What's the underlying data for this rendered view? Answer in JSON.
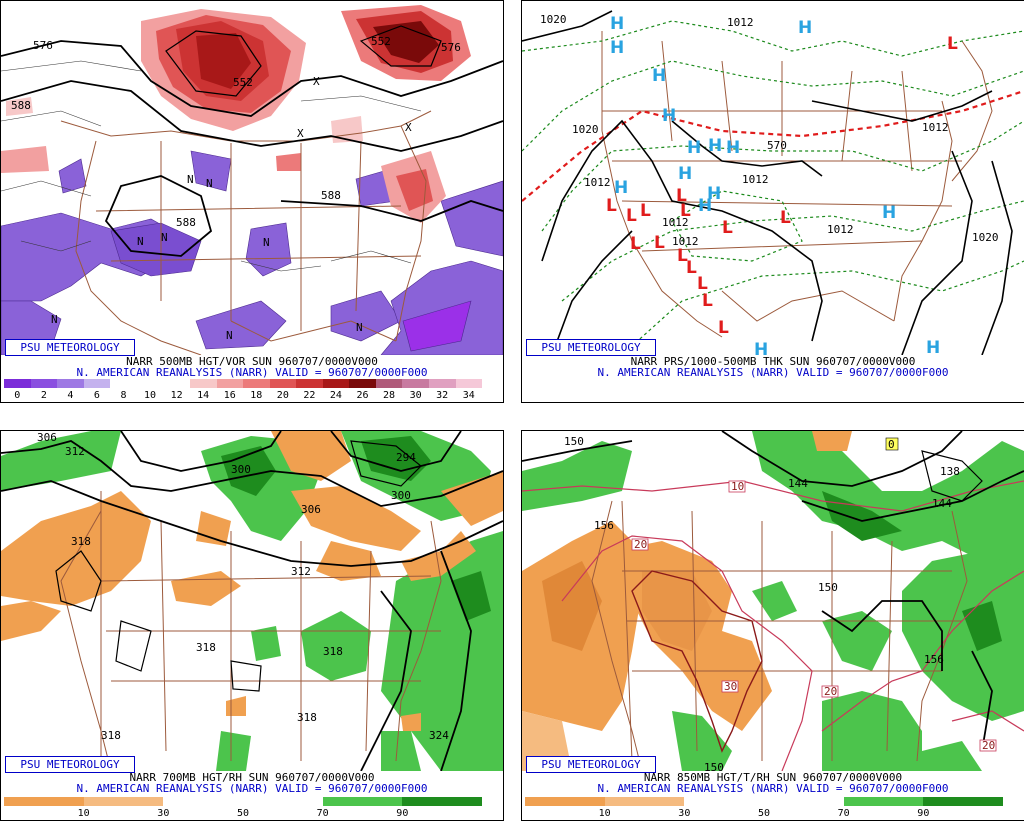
{
  "panels": [
    {
      "id": "p1",
      "title_line1": "NARR 500MB HGT/VOR SUN 960707/0000V000",
      "title_line2": "N. AMERICAN REANALYSIS (NARR) VALID = 960707/0000F000",
      "logo": "PSU METEOROLOGY",
      "scale_labels": [
        "0",
        "2",
        "4",
        "6",
        "8",
        "10",
        "12",
        "14",
        "16",
        "18",
        "20",
        "22",
        "24",
        "26",
        "28",
        "30",
        "32",
        "34"
      ],
      "scale_colors": [
        "#7b2cd9",
        "#8a4fe0",
        "#9e79e4",
        "#c4b2ee",
        "#ffffff",
        "#ffffff",
        "#ffffff",
        "#f7c8c8",
        "#f2a0a0",
        "#ec7a7a",
        "#e05555",
        "#cc3333",
        "#a81818",
        "#7a0a0a",
        "#b05a7a",
        "#c87aa0",
        "#e0a0c0",
        "#f5c8d8"
      ],
      "contour_labels": [
        "576",
        "588",
        "588",
        "552",
        "552",
        "576",
        "588"
      ],
      "feature_labels": [
        "N",
        "N",
        "N",
        "N",
        "N",
        "N",
        "N",
        "X",
        "X",
        "X",
        "N"
      ]
    },
    {
      "id": "p2",
      "title_line1": "NARR PRS/1000-500MB THK SUN 960707/0000V000",
      "title_line2": "N. AMERICAN REANALYSIS (NARR) VALID = 960707/0000F000",
      "logo": "PSU METEOROLOGY",
      "contour_labels": [
        "1020",
        "1012",
        "1020",
        "1012",
        "1012",
        "1012",
        "1012",
        "570",
        "1012",
        "1020",
        "1012"
      ],
      "high_label": "H",
      "low_label": "L"
    },
    {
      "id": "p3",
      "title_line1": "NARR 700MB HGT/RH SUN 960707/0000V000",
      "title_line2": "N. AMERICAN REANALYSIS (NARR) VALID = 960707/0000F000",
      "logo": "PSU METEOROLOGY",
      "scale_labels": [
        "10",
        "30",
        "50",
        "70",
        "90"
      ],
      "scale_colors": [
        "#f0a050",
        "#f5bb80",
        "#ffffff",
        "#ffffff",
        "#4cc44c",
        "#1e8c1e"
      ],
      "contour_labels": [
        "306",
        "312",
        "318",
        "300",
        "306",
        "294",
        "300",
        "312",
        "318",
        "318",
        "318",
        "324",
        "318"
      ]
    },
    {
      "id": "p4",
      "title_line1": "NARR 850MB HGT/T/RH SUN 960707/0000V000",
      "title_line2": "N. AMERICAN REANALYSIS (NARR) VALID = 960707/0000F000",
      "logo": "PSU METEOROLOGY",
      "scale_labels": [
        "10",
        "30",
        "50",
        "70",
        "90"
      ],
      "scale_colors": [
        "#f0a050",
        "#f5bb80",
        "#ffffff",
        "#ffffff",
        "#4cc44c",
        "#1e8c1e"
      ],
      "contour_labels": [
        "150",
        "156",
        "144",
        "138",
        "144",
        "150",
        "156",
        "150"
      ],
      "temp_labels": [
        "0",
        "10",
        "20",
        "30",
        "20",
        "20"
      ]
    }
  ]
}
